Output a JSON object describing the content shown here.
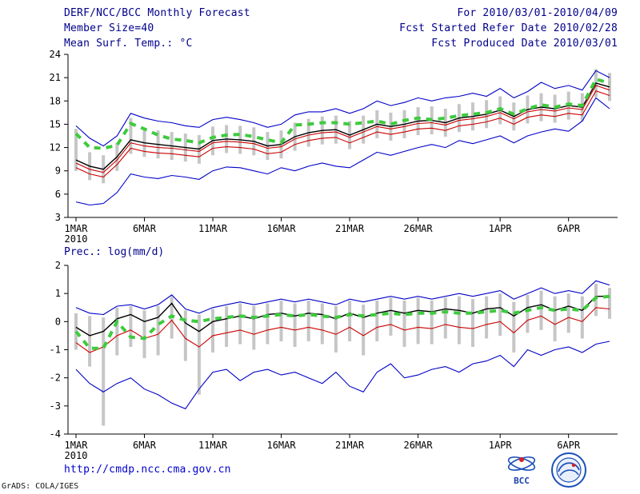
{
  "header": {
    "title": "DERF/NCC/BCC Monthly Forecast",
    "member_size": "Member Size=40",
    "temp_label": "Mean Surf. Temp.: °C",
    "for_range": "For 2010/03/01-2010/04/09",
    "refer_date": "Fcst Started Refer Date 2010/02/28",
    "produced_date": "Fcst Produced Date 2010/03/01"
  },
  "footer": {
    "url": "http://cmdp.ncc.cma.gov.cn",
    "grads_credit": "GrADS: COLA/IGES",
    "logo_bcc_label": "BCC"
  },
  "colors": {
    "header_text": "#00008b",
    "axis": "#000000",
    "envelope_blue": "#0000c8",
    "forecast_red": "#cc0000",
    "mean_black": "#000000",
    "obs_green": "#3ecb3e",
    "spread_bar_gray": "#c6c6c6",
    "url_blue": "#0000cd",
    "logo_blue": "#1a4fb8",
    "logo_red": "#d62020"
  },
  "chart_data": [
    {
      "type": "line",
      "name": "surface-temp",
      "title": "Mean Surf. Temp.: °C",
      "show_title": false,
      "ylim": [
        3,
        24
      ],
      "yticks": [
        3,
        6,
        9,
        12,
        15,
        18,
        21,
        24
      ],
      "n_days": 40,
      "x_start_date": "2010/03/01",
      "x_end_date": "2010/04/09",
      "xticks": [
        {
          "day": 0,
          "label": "1MAR",
          "sub": "2010"
        },
        {
          "day": 5,
          "label": "6MAR"
        },
        {
          "day": 10,
          "label": "11MAR"
        },
        {
          "day": 15,
          "label": "16MAR"
        },
        {
          "day": 20,
          "label": "21MAR"
        },
        {
          "day": 25,
          "label": "26MAR"
        },
        {
          "day": 31,
          "label": "1APR"
        },
        {
          "day": 36,
          "label": "6APR"
        }
      ],
      "bars": {
        "name": "ensemble-spread",
        "color": "#c6c6c6",
        "low": [
          9.0,
          7.8,
          7.4,
          9.0,
          11.2,
          10.8,
          10.6,
          10.4,
          10.2,
          9.9,
          11.0,
          11.3,
          11.2,
          11.0,
          10.4,
          10.6,
          11.6,
          12.1,
          12.4,
          12.5,
          11.8,
          12.5,
          13.2,
          12.9,
          13.2,
          13.6,
          13.7,
          13.4,
          14.0,
          14.2,
          14.5,
          15.0,
          14.2,
          15.1,
          15.4,
          15.2,
          15.6,
          15.4,
          18.5,
          18.0
        ],
        "high": [
          14.4,
          11.4,
          11.0,
          12.6,
          15.8,
          14.4,
          14.2,
          14.0,
          13.8,
          13.6,
          14.7,
          14.9,
          14.8,
          14.6,
          14.0,
          14.2,
          15.2,
          15.7,
          16.0,
          16.1,
          15.4,
          16.1,
          16.8,
          16.5,
          16.8,
          17.2,
          17.3,
          17.0,
          17.6,
          17.8,
          18.1,
          18.6,
          17.8,
          18.7,
          19.0,
          18.8,
          19.2,
          19.0,
          22.1,
          21.6
        ]
      },
      "series": [
        {
          "name": "ensemble-max",
          "color": "#0000c8",
          "width": 1.1,
          "values": [
            14.8,
            13.2,
            12.2,
            13.5,
            16.4,
            15.8,
            15.4,
            15.2,
            14.8,
            14.6,
            15.6,
            15.9,
            15.6,
            15.2,
            14.6,
            15.0,
            16.2,
            16.6,
            16.6,
            17.0,
            16.4,
            17.0,
            18.0,
            17.4,
            17.8,
            18.4,
            18.0,
            18.4,
            18.6,
            19.0,
            18.6,
            19.6,
            18.4,
            19.2,
            20.4,
            19.6,
            20.0,
            19.4,
            21.9,
            21.0
          ]
        },
        {
          "name": "ensemble-min",
          "color": "#0000c8",
          "width": 1.1,
          "values": [
            5.0,
            4.6,
            4.8,
            6.2,
            8.6,
            8.2,
            8.0,
            8.4,
            8.2,
            7.9,
            9.0,
            9.5,
            9.4,
            9.0,
            8.6,
            9.4,
            9.0,
            9.6,
            10.0,
            9.6,
            9.4,
            10.4,
            11.4,
            11.0,
            11.5,
            12.0,
            12.4,
            12.0,
            12.9,
            12.5,
            13.0,
            13.5,
            12.6,
            13.5,
            14.0,
            14.4,
            14.1,
            15.4,
            18.4,
            17.0
          ]
        },
        {
          "name": "median",
          "color": "#cc0000",
          "width": 1.1,
          "values": [
            9.4,
            8.6,
            8.2,
            9.8,
            11.9,
            11.5,
            11.3,
            11.2,
            11.0,
            10.8,
            11.9,
            12.1,
            12.0,
            11.8,
            11.2,
            11.4,
            12.4,
            12.9,
            13.2,
            13.3,
            12.6,
            13.3,
            14.0,
            13.7,
            14.0,
            14.4,
            14.5,
            14.2,
            14.8,
            15.0,
            15.3,
            15.8,
            15.0,
            15.9,
            16.2,
            16.0,
            16.4,
            16.2,
            19.3,
            18.7
          ]
        },
        {
          "name": "control",
          "color": "#cc0000",
          "width": 1.1,
          "values": [
            10.0,
            9.2,
            8.8,
            10.4,
            12.6,
            12.2,
            12.0,
            11.9,
            11.7,
            11.5,
            12.6,
            12.8,
            12.7,
            12.5,
            11.9,
            12.1,
            13.1,
            13.6,
            13.9,
            14.0,
            13.3,
            14.0,
            14.7,
            14.4,
            14.7,
            15.1,
            15.2,
            14.9,
            15.5,
            15.7,
            16.0,
            16.5,
            15.7,
            16.6,
            16.9,
            16.7,
            17.1,
            16.9,
            20.0,
            19.4
          ]
        },
        {
          "name": "ensemble-mean",
          "color": "#000000",
          "width": 1.4,
          "values": [
            10.4,
            9.6,
            9.2,
            10.8,
            13.0,
            12.6,
            12.4,
            12.2,
            12.0,
            11.8,
            12.9,
            13.1,
            13.0,
            12.8,
            12.2,
            12.4,
            13.4,
            13.9,
            14.2,
            14.3,
            13.6,
            14.3,
            15.0,
            14.7,
            15.0,
            15.4,
            15.5,
            15.2,
            15.8,
            16.0,
            16.3,
            16.8,
            16.0,
            16.9,
            17.2,
            17.0,
            17.4,
            17.2,
            20.3,
            19.8
          ]
        },
        {
          "name": "observation",
          "color": "#3ecb3e",
          "width": 4,
          "dash": "8 7",
          "values": [
            13.8,
            12.0,
            11.9,
            12.3,
            15.1,
            14.4,
            13.6,
            13.1,
            12.9,
            12.6,
            13.3,
            13.6,
            13.7,
            13.4,
            13.0,
            12.6,
            14.9,
            15.0,
            15.2,
            15.2,
            15.0,
            15.2,
            15.4,
            15.0,
            15.5,
            15.8,
            15.6,
            15.8,
            16.1,
            16.3,
            16.5,
            17.0,
            16.3,
            17.0,
            17.5,
            17.2,
            17.6,
            17.4,
            20.8,
            20.3
          ]
        }
      ]
    },
    {
      "type": "line",
      "name": "precipitation",
      "title": "Prec.: log(mm/d)",
      "show_title": true,
      "ylim": [
        -4,
        2
      ],
      "yticks": [
        -4,
        -3,
        -2,
        -1,
        0,
        1,
        2
      ],
      "n_days": 40,
      "x_start_date": "2010/03/01",
      "x_end_date": "2010/04/09",
      "xticks": [
        {
          "day": 0,
          "label": "1MAR",
          "sub": "2010"
        },
        {
          "day": 5,
          "label": "6MAR"
        },
        {
          "day": 10,
          "label": "11MAR"
        },
        {
          "day": 15,
          "label": "16MAR"
        },
        {
          "day": 20,
          "label": "21MAR"
        },
        {
          "day": 25,
          "label": "26MAR"
        },
        {
          "day": 31,
          "label": "1APR"
        },
        {
          "day": 36,
          "label": "6APR"
        }
      ],
      "bars": {
        "name": "ensemble-spread",
        "color": "#c6c6c6",
        "low": [
          -1.0,
          -1.6,
          -3.7,
          -1.2,
          -0.9,
          -1.3,
          -1.2,
          -0.6,
          -1.4,
          -2.6,
          -1.1,
          -0.9,
          -0.8,
          -1.0,
          -0.8,
          -0.7,
          -0.9,
          -0.7,
          -0.8,
          -1.1,
          -0.7,
          -1.2,
          -0.7,
          -0.5,
          -0.9,
          -0.8,
          -0.8,
          -0.6,
          -0.8,
          -0.9,
          -0.6,
          -0.5,
          -1.1,
          -0.4,
          -0.3,
          -0.7,
          -0.4,
          -0.6,
          0.2,
          0.1
        ],
        "high": [
          0.3,
          0.2,
          0.15,
          0.5,
          0.55,
          0.4,
          0.55,
          0.9,
          0.4,
          0.25,
          0.45,
          0.55,
          0.65,
          0.55,
          0.65,
          0.75,
          0.65,
          0.75,
          0.65,
          0.55,
          0.75,
          0.6,
          0.75,
          0.85,
          0.75,
          0.85,
          0.75,
          0.85,
          0.9,
          0.8,
          0.9,
          1.0,
          0.7,
          0.95,
          1.1,
          0.9,
          1.0,
          0.9,
          1.35,
          1.2
        ]
      },
      "series": [
        {
          "name": "ensemble-max",
          "color": "#0000c8",
          "width": 1.1,
          "values": [
            0.5,
            0.3,
            0.25,
            0.55,
            0.6,
            0.45,
            0.6,
            0.95,
            0.45,
            0.3,
            0.5,
            0.6,
            0.7,
            0.6,
            0.7,
            0.8,
            0.7,
            0.8,
            0.7,
            0.6,
            0.8,
            0.7,
            0.8,
            0.9,
            0.8,
            0.9,
            0.8,
            0.9,
            1.0,
            0.9,
            1.0,
            1.1,
            0.8,
            1.0,
            1.2,
            1.0,
            1.1,
            1.0,
            1.45,
            1.3
          ]
        },
        {
          "name": "ensemble-min",
          "color": "#0000c8",
          "width": 1.1,
          "values": [
            -1.7,
            -2.2,
            -2.5,
            -2.2,
            -2.0,
            -2.4,
            -2.6,
            -2.9,
            -3.1,
            -2.4,
            -1.8,
            -1.7,
            -2.1,
            -1.8,
            -1.7,
            -1.9,
            -1.8,
            -2.0,
            -2.2,
            -1.8,
            -2.3,
            -2.5,
            -1.8,
            -1.5,
            -2.0,
            -1.9,
            -1.7,
            -1.6,
            -1.8,
            -1.5,
            -1.4,
            -1.2,
            -1.6,
            -1.0,
            -1.2,
            -1.0,
            -0.9,
            -1.1,
            -0.8,
            -0.7
          ]
        },
        {
          "name": "control",
          "color": "#cc0000",
          "width": 1.1,
          "values": [
            -0.75,
            -1.1,
            -0.9,
            -0.5,
            -0.3,
            -0.6,
            -0.45,
            0.05,
            -0.6,
            -0.9,
            -0.5,
            -0.4,
            -0.3,
            -0.45,
            -0.3,
            -0.2,
            -0.3,
            -0.2,
            -0.3,
            -0.45,
            -0.2,
            -0.5,
            -0.2,
            -0.1,
            -0.3,
            -0.2,
            -0.25,
            -0.1,
            -0.2,
            -0.25,
            -0.1,
            0.0,
            -0.4,
            0.05,
            0.2,
            -0.1,
            0.15,
            0.0,
            0.5,
            0.45
          ]
        },
        {
          "name": "ensemble-mean",
          "color": "#000000",
          "width": 1.4,
          "values": [
            -0.2,
            -0.5,
            -0.35,
            0.1,
            0.25,
            0.0,
            0.15,
            0.65,
            -0.05,
            -0.35,
            0.0,
            0.1,
            0.2,
            0.1,
            0.25,
            0.3,
            0.2,
            0.3,
            0.25,
            0.1,
            0.3,
            0.15,
            0.3,
            0.4,
            0.3,
            0.4,
            0.35,
            0.45,
            0.4,
            0.3,
            0.45,
            0.5,
            0.2,
            0.5,
            0.6,
            0.4,
            0.55,
            0.4,
            0.9,
            0.9
          ]
        },
        {
          "name": "observation",
          "color": "#3ecb3e",
          "width": 4,
          "dash": "8 7",
          "values": [
            -0.35,
            -0.95,
            -0.95,
            0.0,
            -0.55,
            -0.6,
            -0.1,
            0.2,
            0.05,
            0.0,
            0.1,
            0.15,
            0.2,
            0.15,
            0.2,
            0.25,
            0.2,
            0.25,
            0.2,
            0.15,
            0.25,
            0.2,
            0.25,
            0.3,
            0.25,
            0.3,
            0.3,
            0.35,
            0.3,
            0.3,
            0.35,
            0.4,
            0.3,
            0.4,
            0.5,
            0.4,
            0.45,
            0.4,
            0.85,
            0.9
          ]
        }
      ]
    }
  ]
}
